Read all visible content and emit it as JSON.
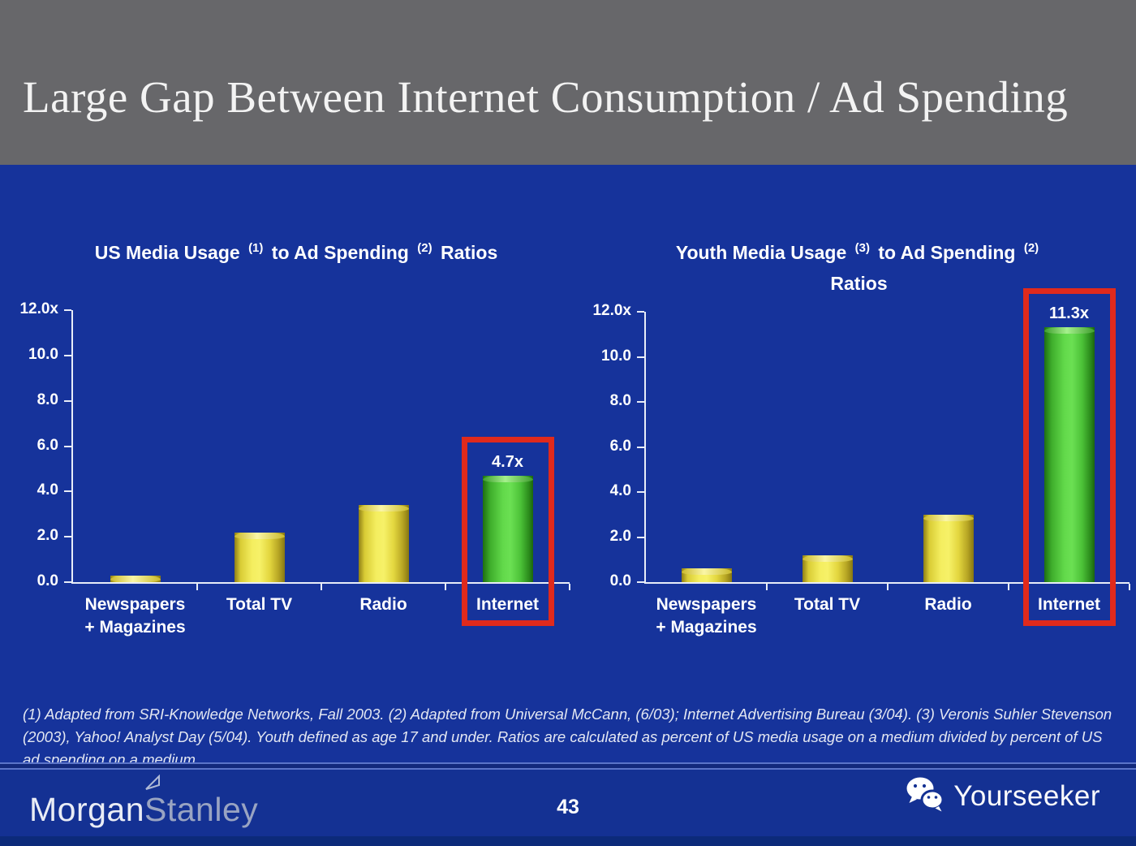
{
  "slide": {
    "title": "Large Gap Between Internet Consumption / Ad Spending",
    "page_number": "43",
    "footnote": "(1) Adapted from SRI-Knowledge Networks, Fall 2003.  (2) Adapted from Universal McCann, (6/03); Internet Advertising Bureau (3/04). (3) Veronis Suhler Stevenson (2003), Yahoo! Analyst Day (5/04).  Youth defined as age 17 and under.  Ratios are calculated as percent of US media usage on a medium divided by percent of US ad spending on a medium.",
    "brand": {
      "part1": "Morgan",
      "part2": "Stanley"
    },
    "watermark_label": "Yourseeker",
    "icons": {
      "watermark": "wechat-icon",
      "brand_mark": "triangle-flag-icon"
    }
  },
  "colors": {
    "header_gray": "#67676A",
    "background_blue": "#16339B",
    "footer_blue": "#143193",
    "bottom_strip_blue": "#0C2A7A",
    "axis_white": "#E8EDF8",
    "bar_yellow": "#EFE23F",
    "bar_green": "#4CC538",
    "highlight_red": "#E02A1C"
  },
  "chart_data": [
    {
      "type": "bar",
      "title": "US Media Usage (1) to Ad Spending (2) Ratios",
      "title_segments": [
        {
          "t": "US Media Usage"
        },
        {
          "s": "(1)"
        },
        {
          "t": "to Ad Spending"
        },
        {
          "s": "(2)"
        },
        {
          "t": "Ratios"
        }
      ],
      "categories": [
        "Newspapers\n+ Magazines",
        "Total TV",
        "Radio",
        "Internet"
      ],
      "values": [
        0.3,
        2.2,
        3.4,
        4.7
      ],
      "bar_colors": [
        "yellow",
        "yellow",
        "yellow",
        "green"
      ],
      "value_labels": [
        "",
        "",
        "",
        "4.7x"
      ],
      "highlight_index": 3,
      "xlabel": "",
      "ylabel": "",
      "ylim": [
        0,
        12
      ],
      "y_ticks": [
        {
          "label": "12.0x",
          "value": 12
        },
        {
          "label": "10.0",
          "value": 10
        },
        {
          "label": "8.0",
          "value": 8
        },
        {
          "label": "6.0",
          "value": 6
        },
        {
          "label": "4.0",
          "value": 4
        },
        {
          "label": "2.0",
          "value": 2
        },
        {
          "label": "0.0",
          "value": 0
        }
      ],
      "grid": false,
      "legend": "none"
    },
    {
      "type": "bar",
      "title": "Youth Media Usage (3) to Ad Spending (2) Ratios",
      "title_segments": [
        {
          "t": "Youth Media Usage"
        },
        {
          "s": "(3)"
        },
        {
          "t": "to Ad Spending"
        },
        {
          "s": "(2)"
        },
        {
          "t": "\nRatios"
        }
      ],
      "categories": [
        "Newspapers\n+ Magazines",
        "Total TV",
        "Radio",
        "Internet"
      ],
      "values": [
        0.6,
        1.2,
        3.0,
        11.3
      ],
      "bar_colors": [
        "yellow",
        "yellow",
        "yellow",
        "green"
      ],
      "value_labels": [
        "",
        "",
        "",
        "11.3x"
      ],
      "highlight_index": 3,
      "xlabel": "",
      "ylabel": "",
      "ylim": [
        0,
        12
      ],
      "y_ticks": [
        {
          "label": "12.0x",
          "value": 12
        },
        {
          "label": "10.0",
          "value": 10
        },
        {
          "label": "8.0",
          "value": 8
        },
        {
          "label": "6.0",
          "value": 6
        },
        {
          "label": "4.0",
          "value": 4
        },
        {
          "label": "2.0",
          "value": 2
        },
        {
          "label": "0.0",
          "value": 0
        }
      ],
      "grid": false,
      "legend": "none"
    }
  ]
}
